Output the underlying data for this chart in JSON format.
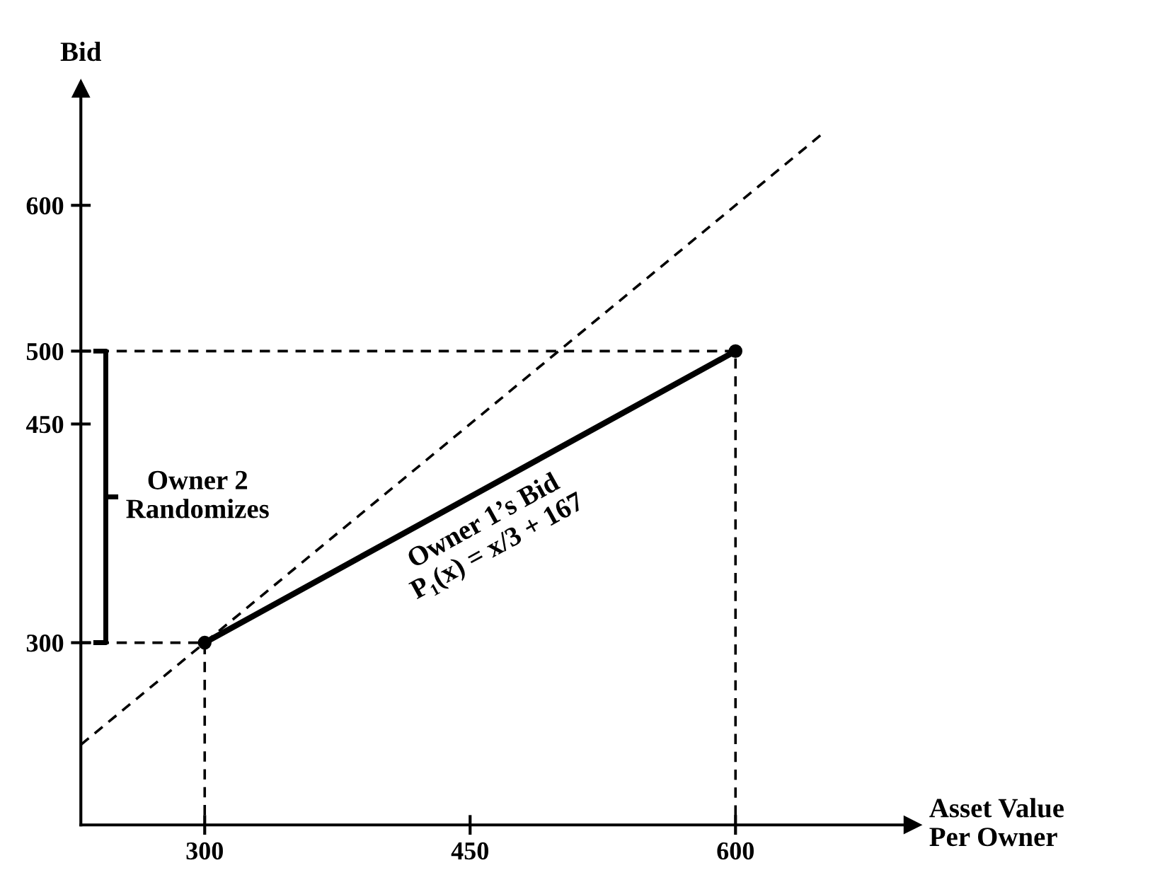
{
  "chart_data": {
    "type": "line",
    "xlabel": "Asset Value\nPer Owner",
    "ylabel": "Bid",
    "xlim": [
      230,
      700
    ],
    "ylim": [
      175,
      680
    ],
    "xticks": [
      300,
      450,
      600
    ],
    "yticks": [
      300,
      450,
      500,
      600
    ],
    "grid": false,
    "series": [
      {
        "color": "#000000",
        "x": [
          300,
          600
        ],
        "values": [
          300,
          500
        ],
        "marker": "circle",
        "line_style": "solid"
      },
      {
        "color": "#000000",
        "x": [
          230,
          650
        ],
        "values": [
          230,
          650
        ],
        "marker": "none",
        "line_style": "dashed"
      },
      {
        "color": "#000000",
        "x": [
          230,
          600,
          600
        ],
        "values": [
          500,
          500,
          175
        ],
        "marker": "none",
        "line_style": "dashed"
      },
      {
        "color": "#000000",
        "x": [
          230,
          300,
          300
        ],
        "values": [
          300,
          300,
          175
        ],
        "marker": "none",
        "line_style": "dashed"
      }
    ],
    "annotations": [
      {
        "text": "Owner 1’s Bid\nP₁(x) = x/3 + 167",
        "x": 450,
        "y": 400
      },
      "Owner 2\nRandomizes"
    ]
  }
}
